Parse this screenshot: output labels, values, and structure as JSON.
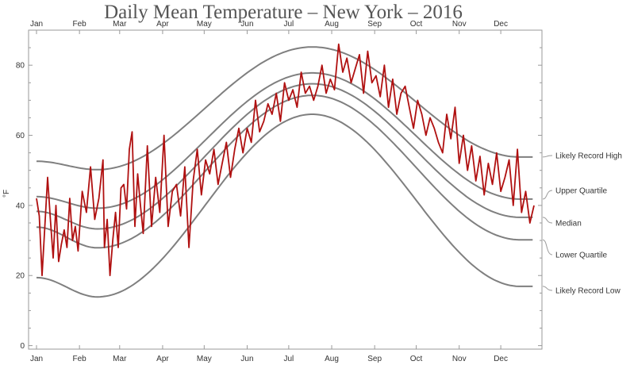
{
  "chart_data": {
    "type": "line",
    "title": "Daily Mean Temperature – New York – 2016",
    "ylabel": "°F",
    "xlabel": "",
    "ylim": [
      -1,
      90
    ],
    "yticks": [
      0,
      20,
      40,
      60,
      80
    ],
    "months": [
      "Jan",
      "Feb",
      "Mar",
      "Apr",
      "May",
      "Jun",
      "Jul",
      "Aug",
      "Sep",
      "Oct",
      "Nov",
      "Dec"
    ],
    "x_unit": "day of year 2016",
    "grid": false,
    "band_labels_placement": "right",
    "colors": {
      "temperature": "#b01010",
      "bands": "#7f7f7f"
    },
    "reference_series": [
      {
        "name": "Likely Record High",
        "x": [
          1,
          45,
          200,
          350
        ],
        "y": [
          52.6,
          50.2,
          85.2,
          53.8
        ]
      },
      {
        "name": "Upper Quartile",
        "x": [
          1,
          45,
          200,
          350
        ],
        "y": [
          42.5,
          39.2,
          77.8,
          41.8
        ]
      },
      {
        "name": "Median",
        "x": [
          1,
          45,
          200,
          350
        ],
        "y": [
          38.3,
          33.3,
          74.7,
          36.6
        ]
      },
      {
        "name": "Lower Quartile",
        "x": [
          1,
          45,
          200,
          350
        ],
        "y": [
          33.8,
          27.9,
          71.4,
          30.2
        ]
      },
      {
        "name": "Likely Record Low",
        "x": [
          1,
          45,
          200,
          350
        ],
        "y": [
          19.4,
          13.9,
          66.0,
          16.9
        ]
      }
    ],
    "series": [
      {
        "x": [
          1,
          3,
          5,
          7,
          9,
          11,
          13,
          15,
          17,
          19,
          21,
          23,
          25,
          27,
          29,
          31,
          34,
          37,
          40,
          43,
          46,
          49,
          50,
          52,
          54,
          56,
          58,
          60,
          62,
          64,
          66,
          68,
          70,
          72,
          74,
          76,
          78,
          81,
          84,
          87,
          90,
          93,
          96,
          99,
          102,
          105,
          108,
          111,
          114,
          117,
          120,
          123,
          126,
          129,
          132,
          135,
          138,
          141,
          144,
          147,
          150,
          153,
          156,
          159,
          162,
          165,
          168,
          171,
          174,
          177,
          180,
          183,
          186,
          189,
          192,
          195,
          198,
          201,
          204,
          207,
          210,
          213,
          216,
          219,
          222,
          225,
          228,
          231,
          234,
          237,
          240,
          243,
          246,
          249,
          252,
          255,
          258,
          261,
          264,
          267,
          270,
          273,
          276,
          279,
          282,
          285,
          288,
          291,
          294,
          297,
          300,
          303,
          306,
          309,
          312,
          315,
          318,
          321,
          324,
          327,
          330,
          333,
          336,
          339,
          342,
          345,
          348,
          351,
          354,
          357,
          360
        ],
        "y": [
          42,
          37,
          20,
          34,
          48,
          36,
          25,
          40,
          24,
          29,
          33,
          28,
          42,
          30,
          34,
          27,
          44,
          38,
          51,
          36,
          42,
          53,
          28,
          36,
          20,
          30,
          38,
          28,
          45,
          46,
          39,
          56,
          61,
          34,
          49,
          40,
          32,
          57,
          34,
          48,
          38,
          60,
          34,
          44,
          46,
          37,
          51,
          28,
          47,
          56,
          43,
          53,
          49,
          56,
          46,
          52,
          58,
          48,
          56,
          62,
          55,
          62,
          58,
          70,
          61,
          64,
          69,
          66,
          72,
          64,
          75,
          70,
          73,
          68,
          78,
          72,
          74,
          70,
          74,
          80,
          72,
          76,
          73,
          86,
          78,
          82,
          75,
          79,
          83,
          72,
          84,
          75,
          77,
          71,
          80,
          68,
          76,
          66,
          72,
          74,
          68,
          62,
          70,
          66,
          60,
          65,
          62,
          58,
          55,
          66,
          59,
          68,
          52,
          60,
          50,
          57,
          47,
          54,
          43,
          52,
          46,
          55,
          44,
          48,
          53,
          40,
          56,
          38,
          44,
          35,
          40
        ]
      }
    ]
  }
}
